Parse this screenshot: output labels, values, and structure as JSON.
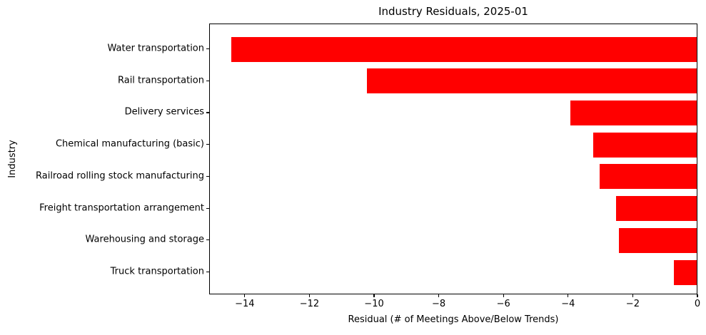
{
  "chart_data": {
    "type": "bar",
    "orientation": "horizontal",
    "title": "Industry Residuals, 2025-01",
    "xlabel": "Residual (# of Meetings Above/Below Trends)",
    "ylabel": "Industry",
    "categories": [
      "Water transportation",
      "Rail transportation",
      "Delivery services",
      "Chemical manufacturing (basic)",
      "Railroad rolling stock manufacturing",
      "Freight transportation arrangement",
      "Warehousing and storage",
      "Truck transportation"
    ],
    "values": [
      -14.4,
      -10.2,
      -3.9,
      -3.2,
      -3.0,
      -2.5,
      -2.4,
      -0.7
    ],
    "xlim": [
      -15.1,
      0
    ],
    "xticks": [
      -14,
      -12,
      -10,
      -8,
      -6,
      -4,
      -2,
      0
    ],
    "xtick_labels": [
      "−14",
      "−12",
      "−10",
      "−8",
      "−6",
      "−4",
      "−2",
      "0"
    ],
    "bar_color": "#ff0000",
    "axis_color": "#000000",
    "text_color": "#000000",
    "background_color": "#ffffff",
    "grid": false,
    "legend": "none"
  }
}
